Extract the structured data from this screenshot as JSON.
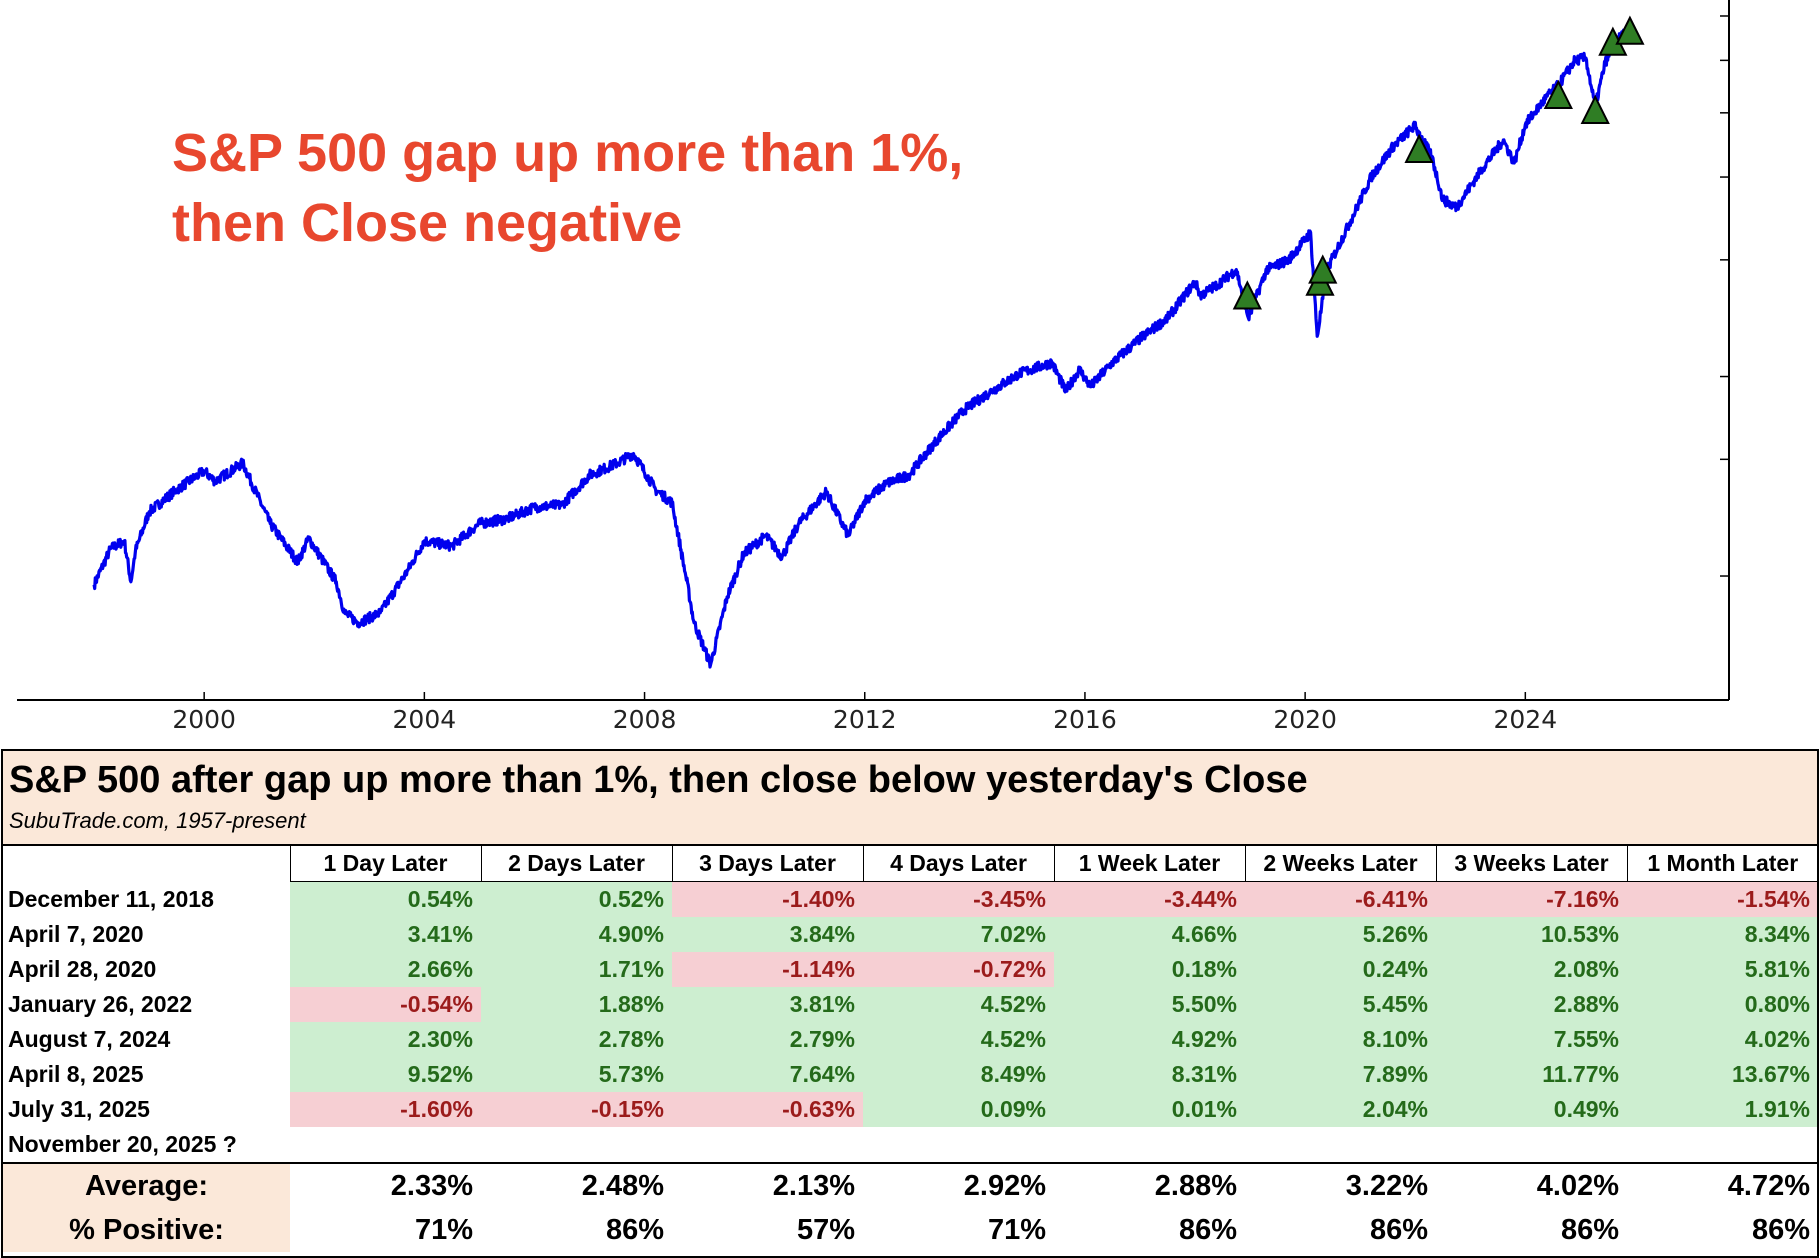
{
  "chart_data": {
    "type": "line",
    "title_lines": [
      "S&P 500 gap up more than 1%,",
      "then Close negative"
    ],
    "x_ticks": [
      "2000",
      "2004",
      "2008",
      "2012",
      "2016",
      "2020",
      "2024"
    ],
    "x_tick_values": [
      2000,
      2004,
      2008,
      2012,
      2016,
      2020,
      2024
    ],
    "xlim": [
      1996.6,
      2027.7
    ],
    "y_scale": "log",
    "ylim": [
      650,
      7400
    ],
    "y_tick_values": [
      1000,
      1500,
      2000,
      3000,
      4000,
      5000,
      6000,
      7000
    ],
    "y_ticks_side": "right",
    "y_tick_labels_shown": false,
    "series": [
      {
        "name": "S&P 500",
        "color": "#0000ee",
        "x": [
          1998.0,
          1998.3,
          1998.55,
          1998.67,
          1998.75,
          1999.0,
          1999.5,
          2000.0,
          2000.2,
          2000.7,
          2001.2,
          2001.7,
          2001.9,
          2002.4,
          2002.55,
          2002.8,
          2003.2,
          2003.7,
          2004.0,
          2004.5,
          2005.0,
          2005.5,
          2006.0,
          2006.5,
          2007.0,
          2007.5,
          2007.8,
          2008.2,
          2008.5,
          2008.75,
          2008.9,
          2009.2,
          2009.5,
          2009.8,
          2010.2,
          2010.5,
          2010.8,
          2011.3,
          2011.7,
          2012.0,
          2012.4,
          2012.8,
          2013.3,
          2013.8,
          2014.3,
          2014.8,
          2015.4,
          2015.65,
          2015.9,
          2016.1,
          2016.5,
          2017.0,
          2017.5,
          2018.0,
          2018.1,
          2018.4,
          2018.75,
          2018.97,
          2019.3,
          2019.7,
          2020.1,
          2020.22,
          2020.4,
          2020.8,
          2021.2,
          2021.6,
          2021.99,
          2022.3,
          2022.5,
          2022.75,
          2023.2,
          2023.6,
          2023.8,
          2024.0,
          2024.4,
          2024.6,
          2024.9,
          2025.1,
          2025.27,
          2025.45,
          2025.6,
          2025.85,
          2025.9
        ],
        "values": [
          970,
          1100,
          1130,
          980,
          1090,
          1250,
          1350,
          1440,
          1390,
          1480,
          1200,
          1050,
          1140,
          980,
          880,
          850,
          880,
          1020,
          1130,
          1110,
          1200,
          1220,
          1270,
          1280,
          1420,
          1480,
          1530,
          1350,
          1290,
          1000,
          850,
          735,
          930,
          1080,
          1150,
          1070,
          1200,
          1340,
          1150,
          1300,
          1380,
          1420,
          1600,
          1780,
          1900,
          2020,
          2100,
          1900,
          2050,
          1930,
          2100,
          2280,
          2450,
          2780,
          2650,
          2750,
          2900,
          2450,
          2900,
          3000,
          3300,
          2300,
          2900,
          3400,
          4000,
          4450,
          4780,
          4300,
          3700,
          3600,
          4100,
          4550,
          4200,
          4800,
          5300,
          5500,
          6000,
          6050,
          5100,
          5950,
          6300,
          6700,
          6650
        ]
      }
    ],
    "markers": {
      "symbol": "triangle-up",
      "color": "#2f7d24",
      "points": [
        {
          "x": 2018.95,
          "y": 2650
        },
        {
          "x": 2020.27,
          "y": 2780
        },
        {
          "x": 2020.32,
          "y": 2900
        },
        {
          "x": 2022.07,
          "y": 4410
        },
        {
          "x": 2024.6,
          "y": 5320
        },
        {
          "x": 2025.27,
          "y": 5050
        },
        {
          "x": 2025.59,
          "y": 6400
        },
        {
          "x": 2025.9,
          "y": 6650
        }
      ]
    }
  },
  "table": {
    "title": "S&P 500 after gap up more than 1%, then close below yesterday's Close",
    "subtitle": "SubuTrade.com, 1957-present",
    "columns": [
      "1 Day Later",
      "2 Days Later",
      "3 Days Later",
      "4 Days Later",
      "1 Week Later",
      "2 Weeks Later",
      "3 Weeks Later",
      "1 Month Later"
    ],
    "rows": [
      {
        "date": "December 11, 2018",
        "values": [
          "0.54%",
          "0.52%",
          "-1.40%",
          "-3.45%",
          "-3.44%",
          "-6.41%",
          "-7.16%",
          "-1.54%"
        ]
      },
      {
        "date": "April 7, 2020",
        "values": [
          "3.41%",
          "4.90%",
          "3.84%",
          "7.02%",
          "4.66%",
          "5.26%",
          "10.53%",
          "8.34%"
        ]
      },
      {
        "date": "April 28, 2020",
        "values": [
          "2.66%",
          "1.71%",
          "-1.14%",
          "-0.72%",
          "0.18%",
          "0.24%",
          "2.08%",
          "5.81%"
        ]
      },
      {
        "date": "January 26, 2022",
        "values": [
          "-0.54%",
          "1.88%",
          "3.81%",
          "4.52%",
          "5.50%",
          "5.45%",
          "2.88%",
          "0.80%"
        ]
      },
      {
        "date": "August 7, 2024",
        "values": [
          "2.30%",
          "2.78%",
          "2.79%",
          "4.52%",
          "4.92%",
          "8.10%",
          "7.55%",
          "4.02%"
        ]
      },
      {
        "date": "April 8, 2025",
        "values": [
          "9.52%",
          "5.73%",
          "7.64%",
          "8.49%",
          "8.31%",
          "7.89%",
          "11.77%",
          "13.67%"
        ]
      },
      {
        "date": "July 31, 2025",
        "values": [
          "-1.60%",
          "-0.15%",
          "-0.63%",
          "0.09%",
          "0.01%",
          "2.04%",
          "0.49%",
          "1.91%"
        ]
      },
      {
        "date": "November 20, 2025 ?",
        "values": [
          "",
          "",
          "",
          "",
          "",
          "",
          "",
          ""
        ]
      }
    ],
    "average_label": "Average:",
    "average": [
      "2.33%",
      "2.48%",
      "2.13%",
      "2.92%",
      "2.88%",
      "3.22%",
      "4.02%",
      "4.72%"
    ],
    "positive_label": "% Positive:",
    "positive": [
      "71%",
      "86%",
      "57%",
      "71%",
      "86%",
      "86%",
      "86%",
      "86%"
    ],
    "colors": {
      "pos_bg": "#cdeed0",
      "pos_text": "#246a1a",
      "neg_bg": "#f6cfd3",
      "neg_text": "#9b1b1b",
      "header_bg": "#fbe8d9"
    }
  }
}
